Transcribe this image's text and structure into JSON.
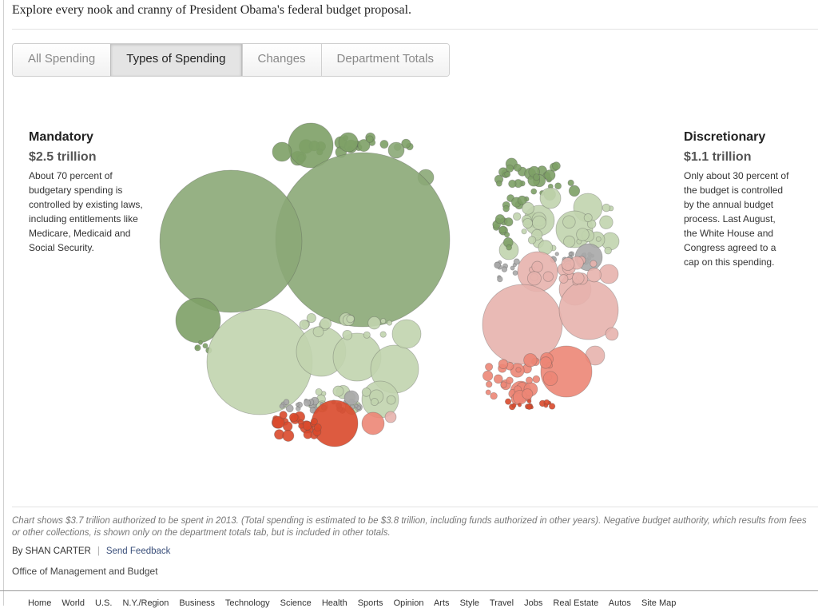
{
  "intro": "Explore every nook and cranny of President Obama's federal budget proposal.",
  "tabs": [
    "All Spending",
    "Types of Spending",
    "Changes",
    "Department Totals"
  ],
  "active_tab": "Types of Spending",
  "mandatory": {
    "title": "Mandatory",
    "amount": "$2.5 trillion",
    "lines": [
      "About 70 percent of",
      "budgetary spending is",
      "controlled by existing laws,",
      "including entitlements like",
      "Medicare, Medicaid and",
      "Social Security."
    ]
  },
  "discretionary": {
    "title": "Discretionary",
    "amount": "$1.1 trillion",
    "lines": [
      "Only about 30 percent of",
      "the budget is controlled",
      "by the annual budget",
      "process. Last August,",
      "the White House and",
      "Congress agreed to a",
      "cap on this spending."
    ]
  },
  "colors": {
    "dark_green": "#8ba877",
    "mid_green": "#7da066",
    "light_green": "#c1d4ae",
    "gray": "#a8a8a8",
    "light_red": "#e7b3ad",
    "red": "#ec8676",
    "dark_red": "#d9492b"
  },
  "note": "Chart shows $3.7 trillion authorized to be spent in 2013. (Total spending is estimated to be $3.8 trillion, including funds authorized in other years). Negative budget authority, which results from fees or other collections, is shown only on the department totals tab, but is included in other totals.",
  "byline": "By SHAN CARTER",
  "feedback": "Send Feedback",
  "source": "Office of Management and Budget",
  "footer_links": [
    "Home",
    "World",
    "U.S.",
    "N.Y./Region",
    "Business",
    "Technology",
    "Science",
    "Health",
    "Sports",
    "Opinion",
    "Arts",
    "Style",
    "Travel",
    "Jobs",
    "Real Estate",
    "Autos",
    "Site Map"
  ]
}
